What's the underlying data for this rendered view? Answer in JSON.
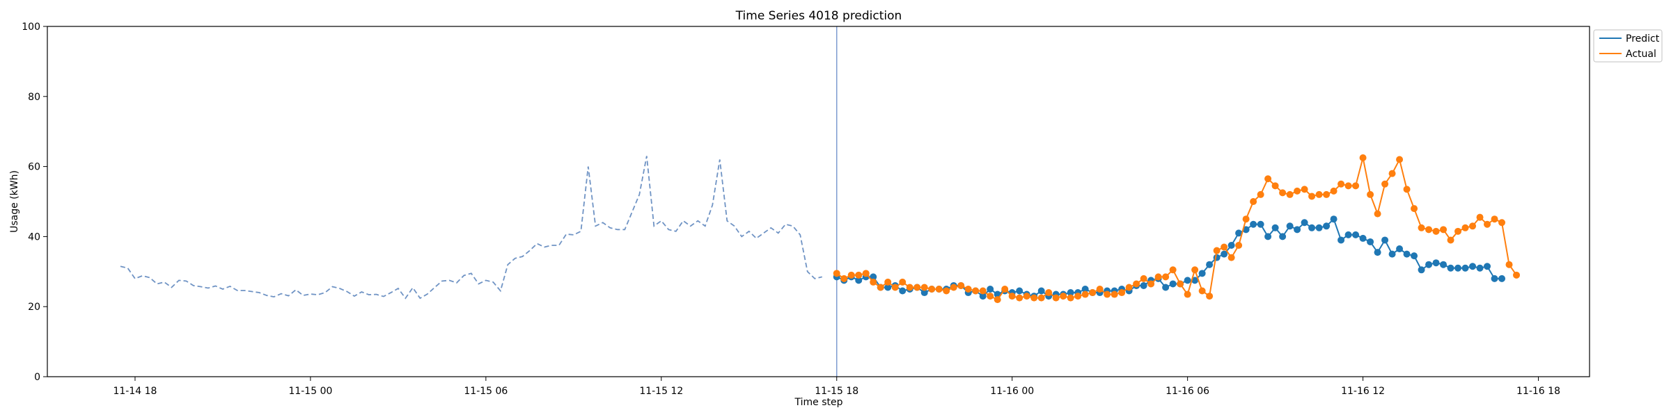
{
  "chart_data": {
    "type": "line",
    "title": "Time Series 4018 prediction",
    "xlabel": "Time step",
    "ylabel": "Usage (kWh)",
    "ylim": [
      0,
      100
    ],
    "yticks": [
      "0",
      "20",
      "40",
      "60",
      "80",
      "100"
    ],
    "x_axis": {
      "type": "time",
      "start": "2023-11-14T15:00",
      "end": "2023-11-16T19:45",
      "ticks": [
        {
          "t": "2023-11-14T18:00",
          "label": "11-14 18"
        },
        {
          "t": "2023-11-15T00:00",
          "label": "11-15 00"
        },
        {
          "t": "2023-11-15T06:00",
          "label": "11-15 06"
        },
        {
          "t": "2023-11-15T12:00",
          "label": "11-15 12"
        },
        {
          "t": "2023-11-15T18:00",
          "label": "11-15 18"
        },
        {
          "t": "2023-11-16T00:00",
          "label": "11-16 00"
        },
        {
          "t": "2023-11-16T06:00",
          "label": "11-16 06"
        },
        {
          "t": "2023-11-16T12:00",
          "label": "11-16 12"
        },
        {
          "t": "2023-11-16T18:00",
          "label": "11-16 18"
        }
      ]
    },
    "forecast_start": "2023-11-15T18:00",
    "history": {
      "color": "#6f93c4",
      "style": "dashed",
      "start": "2023-11-14T17:30",
      "interval_minutes": 15,
      "values": [
        31.5,
        31.0,
        28.0,
        28.8,
        28.3,
        26.5,
        27.0,
        25.5,
        27.5,
        27.3,
        26.0,
        25.7,
        25.3,
        25.9,
        25.0,
        25.8,
        24.6,
        24.6,
        24.3,
        24.0,
        23.2,
        22.8,
        23.7,
        23.1,
        24.8,
        23.2,
        23.6,
        23.4,
        24.0,
        25.7,
        25.2,
        24.3,
        23.0,
        24.2,
        23.4,
        23.5,
        22.9,
        24.0,
        25.2,
        22.4,
        25.4,
        22.4,
        23.6,
        25.5,
        27.3,
        27.5,
        26.8,
        28.9,
        29.5,
        26.5,
        27.5,
        27.0,
        24.5,
        32.0,
        33.8,
        34.3,
        36.0,
        38.0,
        37.0,
        37.5,
        37.5,
        40.7,
        40.5,
        41.5,
        60.0,
        43.0,
        44.0,
        42.5,
        42.0,
        42.0,
        47.0,
        52.0,
        63.0,
        43.0,
        44.5,
        42.0,
        41.5,
        44.5,
        43.0,
        44.5,
        43.0,
        49.0,
        62.0,
        44.5,
        43.0,
        40.0,
        41.5,
        39.5,
        41.0,
        42.5,
        41.0,
        43.5,
        43.0,
        40.5,
        30.0,
        28.0,
        28.5
      ]
    },
    "series": [
      {
        "name": "Predict",
        "color": "#1f77b4",
        "start": "2023-11-15T18:00",
        "interval_minutes": 15,
        "values": [
          28.5,
          27.5,
          28.5,
          27.5,
          28.5,
          28.5,
          25.5,
          25.5,
          26.0,
          24.5,
          25.0,
          25.5,
          24.0,
          25.0,
          25.0,
          25.0,
          26.0,
          26.0,
          24.0,
          24.5,
          23.0,
          25.0,
          23.5,
          24.5,
          24.0,
          24.5,
          23.5,
          23.0,
          24.5,
          23.0,
          23.5,
          23.5,
          24.0,
          24.0,
          25.0,
          24.0,
          24.0,
          24.5,
          24.5,
          25.0,
          24.5,
          26.0,
          26.0,
          27.5,
          28.0,
          25.5,
          26.5,
          26.5,
          27.5,
          27.5,
          29.5,
          32.0,
          34.0,
          35.0,
          37.5,
          41.0,
          42.0,
          43.5,
          43.5,
          40.0,
          42.5,
          40.0,
          43.0,
          42.0,
          44.0,
          42.5,
          42.5,
          43.0,
          45.0,
          39.0,
          40.5,
          40.5,
          39.5,
          38.5,
          35.5,
          39.0,
          35.0,
          36.5,
          35.0,
          34.5,
          30.5,
          32.0,
          32.5,
          32.0,
          31.0,
          31.0,
          31.0,
          31.5,
          31.0,
          31.5,
          28.0,
          28.0
        ]
      },
      {
        "name": "Actual",
        "color": "#ff7f0e",
        "start": "2023-11-15T18:00",
        "interval_minutes": 15,
        "values": [
          29.5,
          28.0,
          29.0,
          29.0,
          29.5,
          27.0,
          25.5,
          27.0,
          25.5,
          27.0,
          25.5,
          25.5,
          25.5,
          25.0,
          25.0,
          24.5,
          25.5,
          26.0,
          25.0,
          24.5,
          24.5,
          23.0,
          22.0,
          25.0,
          23.0,
          22.5,
          23.0,
          22.5,
          22.5,
          24.0,
          22.5,
          23.0,
          22.5,
          23.0,
          23.5,
          24.0,
          25.0,
          23.5,
          23.5,
          24.0,
          25.5,
          26.5,
          28.0,
          26.5,
          28.5,
          28.5,
          30.5,
          26.5,
          23.5,
          30.5,
          24.5,
          23.0,
          36.0,
          37.0,
          34.0,
          37.5,
          45.0,
          50.0,
          52.0,
          56.5,
          54.5,
          52.5,
          52.0,
          53.0,
          53.5,
          51.5,
          52.0,
          52.0,
          53.0,
          55.0,
          54.5,
          54.5,
          62.5,
          52.0,
          46.5,
          55.0,
          58.0,
          62.0,
          53.5,
          48.0,
          42.5,
          42.0,
          41.5,
          42.0,
          39.0,
          41.5,
          42.5,
          43.0,
          45.5,
          43.5,
          45.0,
          44.0,
          32.0,
          29.0
        ]
      }
    ],
    "legend": {
      "position": "upper right, outside plot",
      "entries": [
        "Predict",
        "Actual"
      ]
    },
    "grid": false
  }
}
